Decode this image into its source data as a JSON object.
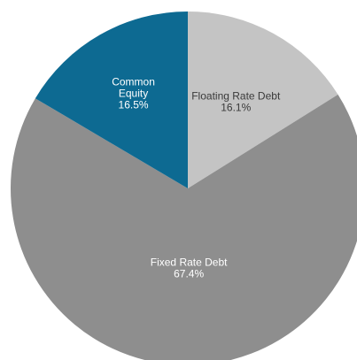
{
  "chart_data": {
    "type": "pie",
    "title": "",
    "slices": [
      {
        "label": "Floating Rate Debt",
        "value": 16.1,
        "value_label": "16.1%",
        "color": "#c4c4c4",
        "text_color": "#3a3a3a"
      },
      {
        "label": "Fixed Rate Debt",
        "value": 67.4,
        "value_label": "67.4%",
        "color": "#8e8e8e",
        "text_color": "#ffffff"
      },
      {
        "label": "Common Equity",
        "value": 16.5,
        "value_label": "16.5%",
        "color": "#0d6a92",
        "text_color": "#ffffff"
      }
    ],
    "start": "12 o'clock",
    "direction": "clockwise",
    "legend": "none",
    "labels": "inside"
  }
}
